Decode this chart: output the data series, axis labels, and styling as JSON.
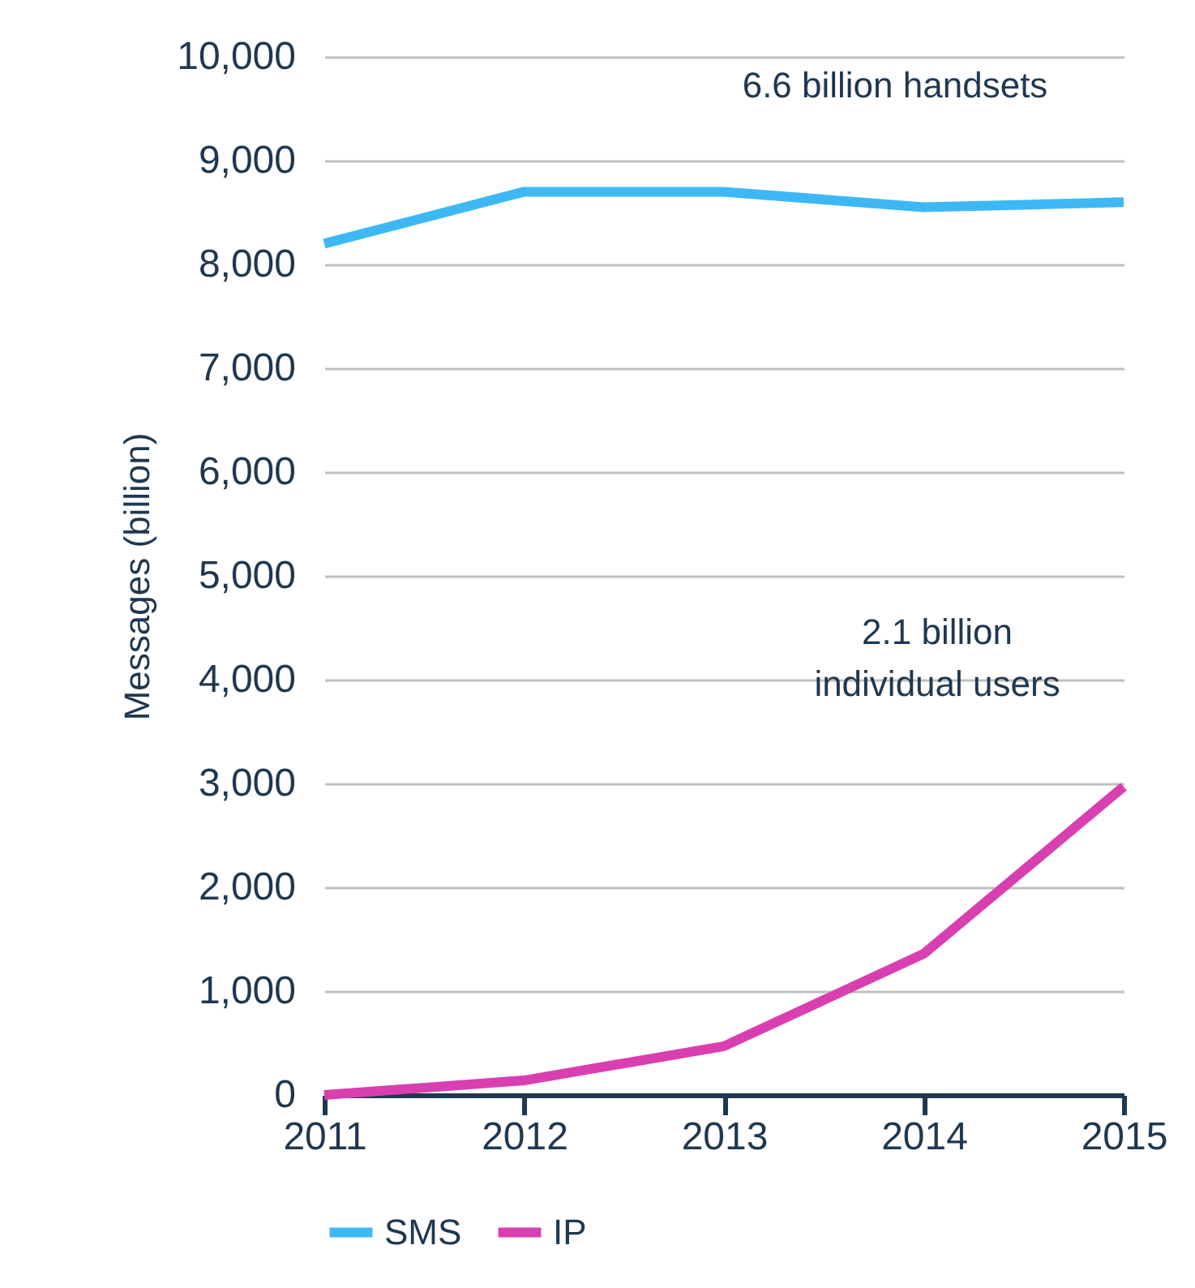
{
  "chart_data": {
    "type": "line",
    "ylabel": "Messages (billion)",
    "x": [
      2011,
      2012,
      2013,
      2014,
      2015
    ],
    "series": [
      {
        "name": "SMS",
        "color": "#3db8f5",
        "values": [
          8200,
          8700,
          8700,
          8550,
          8600
        ]
      },
      {
        "name": "IP",
        "color": "#d93fb0",
        "values": [
          0,
          140,
          470,
          1360,
          2970
        ]
      }
    ],
    "xlim": [
      2011,
      2015
    ],
    "xticks": [
      2011,
      2012,
      2013,
      2014,
      2015
    ],
    "ylim": [
      0,
      10000
    ],
    "yticks": [
      0,
      {
        "value": 1000,
        "label": "1,000"
      },
      {
        "value": 2000,
        "label": "2,000"
      },
      {
        "value": 3000,
        "label": "3,000"
      },
      {
        "value": 4000,
        "label": "4,000"
      },
      {
        "value": 5000,
        "label": "5,000"
      },
      {
        "value": 6000,
        "label": "6,000"
      },
      {
        "value": 7000,
        "label": "7,000"
      },
      {
        "value": 8000,
        "label": "8,000"
      },
      {
        "value": 9000,
        "label": "9,000"
      },
      {
        "value": 10000,
        "label": "10,000"
      }
    ],
    "grid": "y",
    "legend": "bottom",
    "marker": "none",
    "line_style": "solid",
    "annotations": [
      "6.6 billion handsets",
      "2.1 billion\nindividual users"
    ]
  }
}
